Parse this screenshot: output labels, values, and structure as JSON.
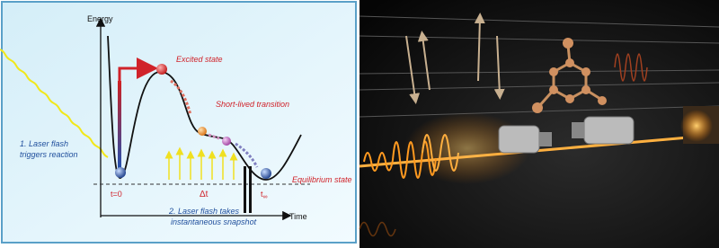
{
  "diagram": {
    "axes": {
      "y_label": "Energy",
      "x_label": "Time"
    },
    "states": {
      "excited": "Excited state",
      "transition": "Short-lived transition",
      "equilibrium": "Equilibrium state"
    },
    "times": {
      "start": "t=0",
      "delta": "Δt",
      "end_base": "t",
      "end_sub": "∞"
    },
    "steps": {
      "first": [
        "1. Laser flash",
        "triggers reaction"
      ],
      "second": [
        "2. Laser flash takes",
        "instantaneous snapshot"
      ]
    }
  }
}
